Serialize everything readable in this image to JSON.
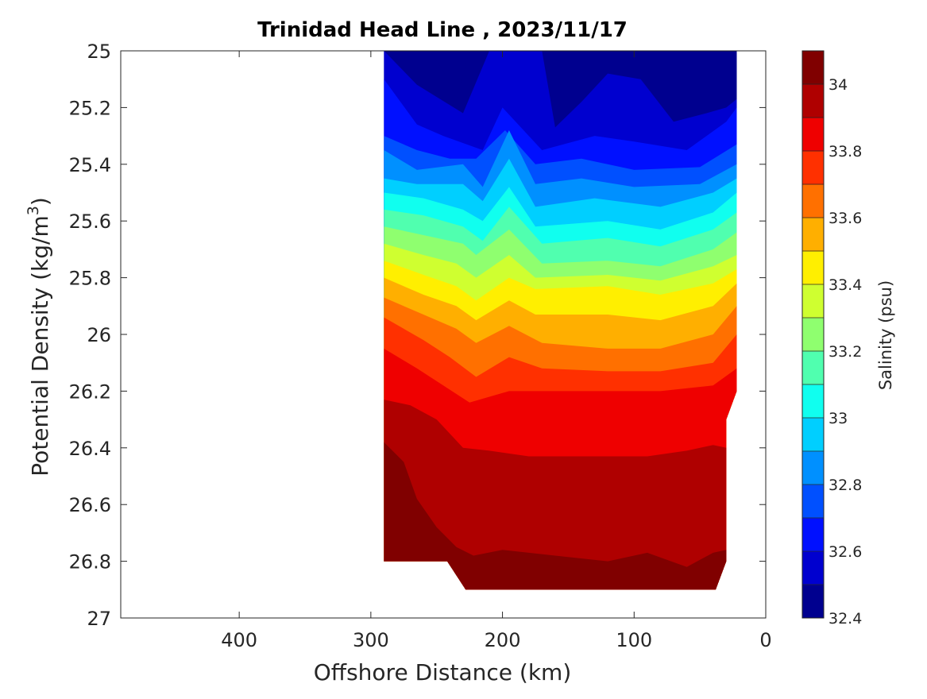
{
  "chart_data": {
    "type": "contour",
    "title": "Trinidad Head Line , 2023/11/17",
    "xlabel": "Offshore Distance (km)",
    "ylabel": "Potential Density (kg/m3)",
    "colorbar_label": "Salinity (psu)",
    "xlim": [
      490,
      0
    ],
    "ylim": [
      25,
      27
    ],
    "x_ticks": [
      400,
      300,
      200,
      100,
      0
    ],
    "x_tick_labels": [
      "400",
      "300",
      "200",
      "100",
      "0"
    ],
    "y_ticks": [
      25,
      25.2,
      25.4,
      25.6,
      25.8,
      26,
      26.2,
      26.4,
      26.6,
      26.8,
      27
    ],
    "y_tick_labels": [
      "25",
      "25.2",
      "25.4",
      "25.6",
      "25.8",
      "26",
      "26.2",
      "26.4",
      "26.6",
      "26.8",
      "27"
    ],
    "colorbar_range": [
      32.4,
      34.1
    ],
    "colorbar_ticks": [
      32.4,
      32.6,
      32.8,
      33,
      33.2,
      33.4,
      33.6,
      33.8,
      34
    ],
    "colorbar_tick_labels": [
      "32.4",
      "32.6",
      "32.8",
      "33",
      "33.2",
      "33.4",
      "33.6",
      "33.8",
      "34"
    ],
    "levels": [
      32.4,
      32.5,
      32.6,
      32.7,
      32.8,
      32.9,
      33.0,
      33.1,
      33.2,
      33.3,
      33.4,
      33.5,
      33.6,
      33.7,
      33.8,
      33.9,
      34.0,
      34.1
    ],
    "level_colors": [
      "#00008f",
      "#0000cf",
      "#0010ff",
      "#0050ff",
      "#0090ff",
      "#00cfff",
      "#10ffef",
      "#50ffaf",
      "#8fff6f",
      "#cfff30",
      "#ffef00",
      "#ffaf00",
      "#ff7000",
      "#ff3000",
      "#ef0000",
      "#af0000",
      "#800000"
    ],
    "data_x_range_km": [
      22,
      290
    ],
    "contour_boundaries": [
      {
        "level": 32.5,
        "points": [
          [
            255,
            25.0
          ],
          [
            245,
            25.07
          ],
          [
            235,
            25.17
          ],
          [
            225,
            25.0
          ],
          [
            160,
            25.0
          ],
          [
            155,
            25.05
          ],
          [
            150,
            25.0
          ]
        ]
      },
      {
        "level": 32.6,
        "points": [
          [
            290,
            25.0
          ],
          [
            265,
            25.12
          ],
          [
            230,
            25.22
          ],
          [
            210,
            25.0
          ],
          [
            170,
            25.0
          ],
          [
            160,
            25.27
          ],
          [
            140,
            25.18
          ],
          [
            120,
            25.08
          ],
          [
            95,
            25.1
          ],
          [
            70,
            25.25
          ],
          [
            45,
            25.22
          ],
          [
            30,
            25.2
          ],
          [
            22,
            25.17
          ]
        ]
      },
      {
        "level": 32.7,
        "points": [
          [
            290,
            25.1
          ],
          [
            265,
            25.26
          ],
          [
            245,
            25.3
          ],
          [
            215,
            25.35
          ],
          [
            200,
            25.2
          ],
          [
            170,
            25.35
          ],
          [
            130,
            25.3
          ],
          [
            100,
            25.32
          ],
          [
            60,
            25.35
          ],
          [
            30,
            25.25
          ],
          [
            22,
            25.2
          ]
        ]
      },
      {
        "level": 32.8,
        "points": [
          [
            290,
            25.3
          ],
          [
            265,
            25.35
          ],
          [
            240,
            25.38
          ],
          [
            220,
            25.38
          ],
          [
            198,
            25.28
          ],
          [
            175,
            25.4
          ],
          [
            140,
            25.38
          ],
          [
            100,
            25.42
          ],
          [
            50,
            25.41
          ],
          [
            22,
            25.33
          ]
        ]
      },
      {
        "level": 32.9,
        "points": [
          [
            290,
            25.35
          ],
          [
            265,
            25.42
          ],
          [
            230,
            25.4
          ],
          [
            215,
            25.48
          ],
          [
            195,
            25.28
          ],
          [
            175,
            25.47
          ],
          [
            140,
            25.45
          ],
          [
            100,
            25.48
          ],
          [
            50,
            25.47
          ],
          [
            22,
            25.4
          ]
        ]
      },
      {
        "level": 33.0,
        "points": [
          [
            290,
            25.45
          ],
          [
            265,
            25.47
          ],
          [
            230,
            25.47
          ],
          [
            215,
            25.53
          ],
          [
            195,
            25.38
          ],
          [
            175,
            25.55
          ],
          [
            130,
            25.52
          ],
          [
            80,
            25.55
          ],
          [
            40,
            25.5
          ],
          [
            22,
            25.45
          ]
        ]
      },
      {
        "level": 33.1,
        "points": [
          [
            290,
            25.5
          ],
          [
            260,
            25.52
          ],
          [
            230,
            25.56
          ],
          [
            215,
            25.6
          ],
          [
            195,
            25.48
          ],
          [
            175,
            25.62
          ],
          [
            120,
            25.6
          ],
          [
            80,
            25.63
          ],
          [
            40,
            25.57
          ],
          [
            22,
            25.5
          ]
        ]
      },
      {
        "level": 33.2,
        "points": [
          [
            290,
            25.56
          ],
          [
            260,
            25.58
          ],
          [
            230,
            25.62
          ],
          [
            215,
            25.67
          ],
          [
            195,
            25.55
          ],
          [
            170,
            25.68
          ],
          [
            120,
            25.66
          ],
          [
            80,
            25.69
          ],
          [
            40,
            25.63
          ],
          [
            22,
            25.57
          ]
        ]
      },
      {
        "level": 33.3,
        "points": [
          [
            290,
            25.62
          ],
          [
            260,
            25.65
          ],
          [
            230,
            25.68
          ],
          [
            220,
            25.72
          ],
          [
            195,
            25.63
          ],
          [
            170,
            25.75
          ],
          [
            120,
            25.74
          ],
          [
            80,
            25.76
          ],
          [
            40,
            25.7
          ],
          [
            22,
            25.64
          ]
        ]
      },
      {
        "level": 33.4,
        "points": [
          [
            290,
            25.68
          ],
          [
            260,
            25.72
          ],
          [
            235,
            25.75
          ],
          [
            220,
            25.8
          ],
          [
            195,
            25.72
          ],
          [
            175,
            25.8
          ],
          [
            120,
            25.79
          ],
          [
            80,
            25.81
          ],
          [
            40,
            25.76
          ],
          [
            22,
            25.72
          ]
        ]
      },
      {
        "level": 33.5,
        "points": [
          [
            290,
            25.74
          ],
          [
            260,
            25.79
          ],
          [
            235,
            25.83
          ],
          [
            220,
            25.88
          ],
          [
            195,
            25.8
          ],
          [
            175,
            25.84
          ],
          [
            120,
            25.83
          ],
          [
            80,
            25.86
          ],
          [
            40,
            25.82
          ],
          [
            22,
            25.77
          ]
        ]
      },
      {
        "level": 33.6,
        "points": [
          [
            290,
            25.8
          ],
          [
            260,
            25.86
          ],
          [
            235,
            25.9
          ],
          [
            220,
            25.95
          ],
          [
            195,
            25.88
          ],
          [
            175,
            25.93
          ],
          [
            120,
            25.93
          ],
          [
            80,
            25.95
          ],
          [
            40,
            25.9
          ],
          [
            22,
            25.82
          ]
        ]
      },
      {
        "level": 33.7,
        "points": [
          [
            290,
            25.87
          ],
          [
            260,
            25.93
          ],
          [
            235,
            25.98
          ],
          [
            220,
            26.03
          ],
          [
            195,
            25.97
          ],
          [
            170,
            26.03
          ],
          [
            120,
            26.05
          ],
          [
            80,
            26.05
          ],
          [
            40,
            26.0
          ],
          [
            22,
            25.9
          ]
        ]
      },
      {
        "level": 33.8,
        "points": [
          [
            290,
            25.94
          ],
          [
            260,
            26.02
          ],
          [
            240,
            26.08
          ],
          [
            220,
            26.15
          ],
          [
            195,
            26.08
          ],
          [
            170,
            26.12
          ],
          [
            120,
            26.13
          ],
          [
            80,
            26.13
          ],
          [
            40,
            26.1
          ],
          [
            22,
            26.0
          ]
        ]
      },
      {
        "level": 33.9,
        "points": [
          [
            290,
            26.05
          ],
          [
            265,
            26.12
          ],
          [
            245,
            26.18
          ],
          [
            225,
            26.24
          ],
          [
            195,
            26.2
          ],
          [
            170,
            26.2
          ],
          [
            120,
            26.2
          ],
          [
            80,
            26.2
          ],
          [
            40,
            26.18
          ],
          [
            22,
            26.12
          ]
        ]
      },
      {
        "level": 34.0,
        "points": [
          [
            290,
            26.23
          ],
          [
            270,
            26.25
          ],
          [
            250,
            26.3
          ],
          [
            230,
            26.4
          ],
          [
            210,
            26.41
          ],
          [
            180,
            26.43
          ],
          [
            130,
            26.43
          ],
          [
            90,
            26.43
          ],
          [
            60,
            26.41
          ],
          [
            40,
            26.39
          ],
          [
            30,
            26.4
          ]
        ]
      },
      {
        "level": 34.1,
        "points": [
          [
            290,
            26.38
          ],
          [
            275,
            26.45
          ],
          [
            265,
            26.58
          ],
          [
            250,
            26.68
          ],
          [
            235,
            26.75
          ],
          [
            222,
            26.78
          ],
          [
            200,
            26.76
          ],
          [
            160,
            26.78
          ],
          [
            120,
            26.8
          ],
          [
            90,
            26.77
          ],
          [
            60,
            26.82
          ],
          [
            40,
            26.77
          ],
          [
            30,
            26.76
          ]
        ]
      }
    ]
  }
}
